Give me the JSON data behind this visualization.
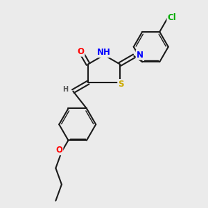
{
  "background_color": "#ebebeb",
  "bond_color": "#1a1a1a",
  "atom_colors": {
    "O": "#ff0000",
    "N": "#0000ff",
    "S": "#ccaa00",
    "Cl": "#00aa00",
    "H_label": "#555555",
    "C": "#1a1a1a"
  },
  "font_size_atoms": 8.5,
  "font_size_small": 7.0
}
